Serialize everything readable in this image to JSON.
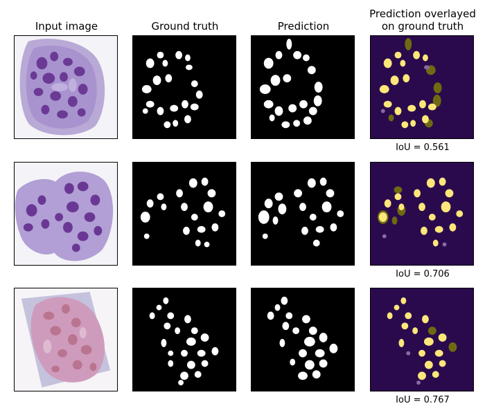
{
  "column_titles": {
    "input": "Input image",
    "truth": "Ground truth",
    "prediction": "Prediction",
    "overlay_line1": "Prediction overlayed",
    "overlay_line2": "on ground truth"
  },
  "rows": [
    {
      "iou": "IoU = 0.561"
    },
    {
      "iou": "IoU = 0.706"
    },
    {
      "iou": "IoU = 0.767"
    }
  ],
  "colors": {
    "mask_background": "#000000",
    "mask_foreground": "#ffffff",
    "overlay_background": "#2a0a4d",
    "overlay_match": "#fde77a",
    "overlay_pred_only": "#6f6a12",
    "overlay_truth_only": "#8a6aa0",
    "tissue_purple": "#9a7fc4",
    "tissue_pink": "#cf9bbd"
  }
}
